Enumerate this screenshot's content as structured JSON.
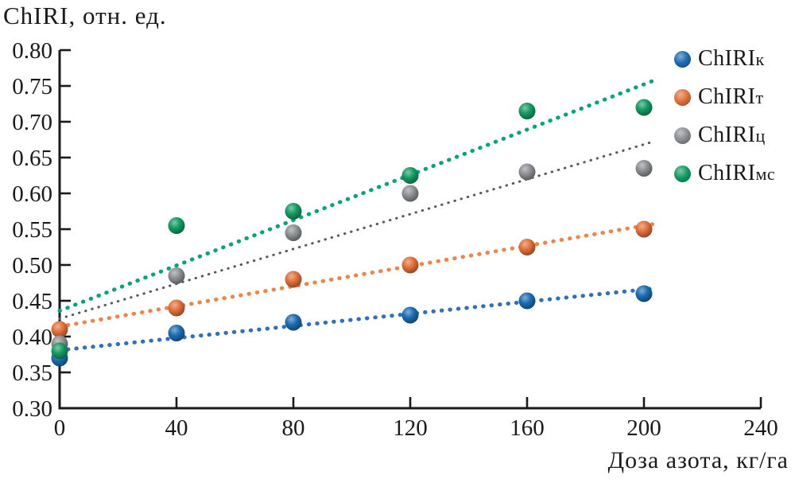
{
  "chart": {
    "title": "ChIRI, отн. ед.",
    "xlabel": "Доза азота, кг/га"
  },
  "chart_data": {
    "type": "scatter",
    "title": "ChIRI, отн. ед.",
    "xlabel": "Доза азота, кг/га",
    "ylabel": "ChIRI, отн. ед.",
    "xlim": [
      0,
      240
    ],
    "ylim": [
      0.3,
      0.8
    ],
    "x_ticks": [
      0,
      40,
      80,
      120,
      160,
      200,
      240
    ],
    "y_ticks": [
      "0.80",
      "0.75",
      "0.70",
      "0.65",
      "0.60",
      "0.55",
      "0.50",
      "0.45",
      "0.40",
      "0.35",
      "0.30"
    ],
    "grid": false,
    "legend_position": "right",
    "trendline_style": "dotted",
    "x": [
      0,
      40,
      80,
      120,
      160,
      200
    ],
    "series": [
      {
        "name": "ChIRIк",
        "label_main": "ChIRI",
        "label_sub": "к",
        "color": "#1b6cb3",
        "trend_color": "#2f6fbd",
        "values": [
          0.37,
          0.405,
          0.42,
          0.43,
          0.45,
          0.46
        ],
        "trend": {
          "x": [
            0,
            203
          ],
          "y": [
            0.381,
            0.467
          ]
        }
      },
      {
        "name": "ChIRIт",
        "label_main": "ChIRI",
        "label_sub": "т",
        "color": "#e2703a",
        "trend_color": "#ef8448",
        "values": [
          0.41,
          0.44,
          0.48,
          0.5,
          0.525,
          0.55
        ],
        "trend": {
          "x": [
            0,
            203
          ],
          "y": [
            0.414,
            0.557
          ]
        }
      },
      {
        "name": "ChIRIц",
        "label_main": "ChIRI",
        "label_sub": "ц",
        "color": "#8d9092",
        "trend_color": "#55585c",
        "values": [
          0.39,
          0.485,
          0.545,
          0.6,
          0.63,
          0.635
        ],
        "trend": {
          "x": [
            0,
            203
          ],
          "y": [
            0.425,
            0.672
          ]
        }
      },
      {
        "name": "ChIRIмс",
        "label_main": "ChIRI",
        "label_sub": "мс",
        "color": "#149b62",
        "trend_color": "#00a578",
        "values": [
          0.38,
          0.555,
          0.575,
          0.625,
          0.715,
          0.72
        ],
        "trend": {
          "x": [
            0,
            203
          ],
          "y": [
            0.436,
            0.757
          ]
        }
      }
    ]
  }
}
